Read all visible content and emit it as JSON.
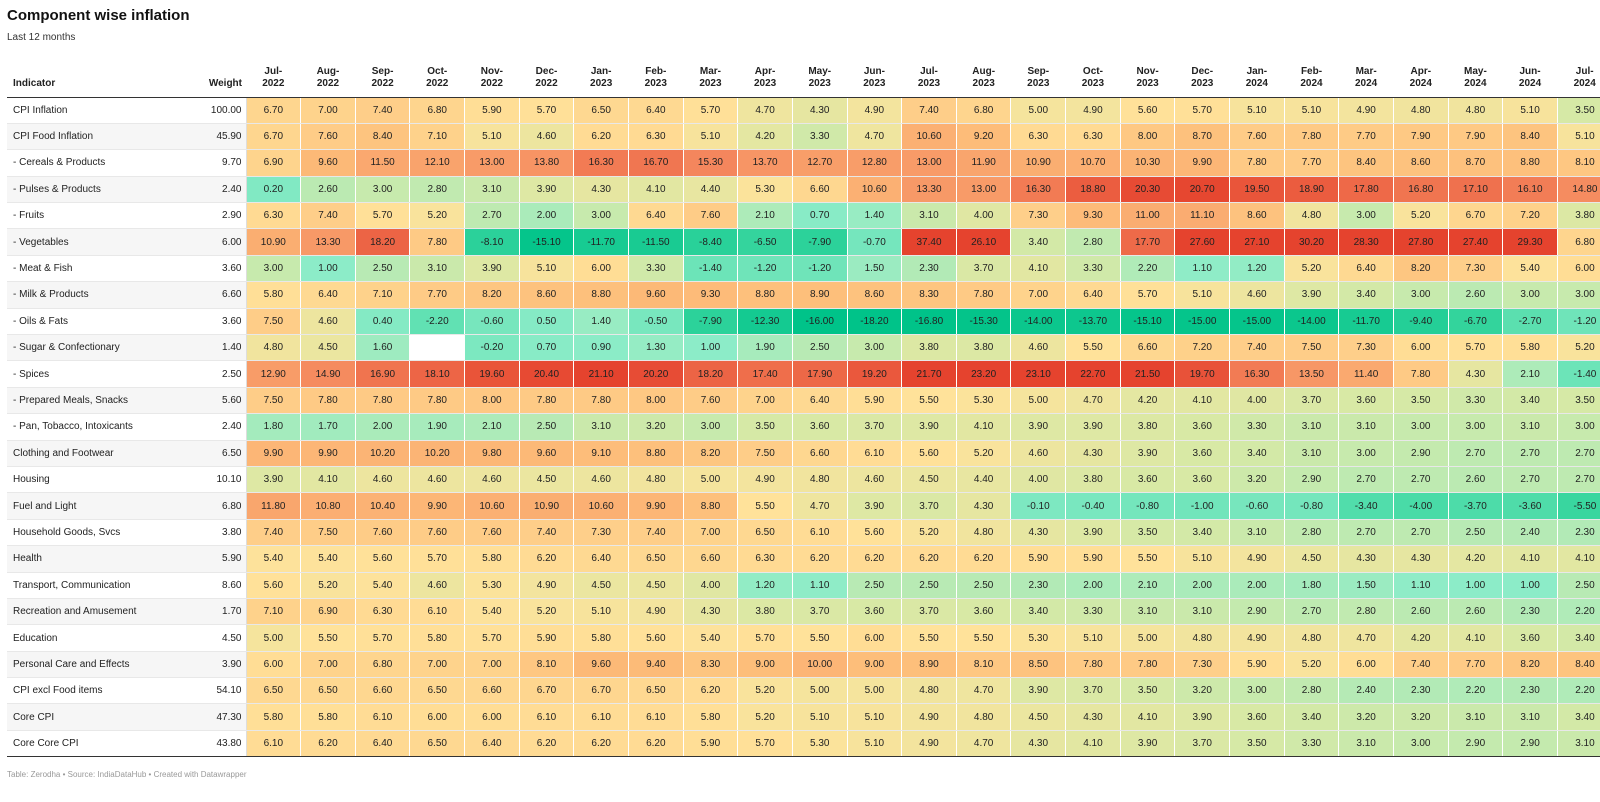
{
  "header": {
    "title": "Component wise inflation",
    "subtitle": "Last 12 months"
  },
  "footer": {
    "credit": "Table: Zerodha • Source: IndiaDataHub • Created with Datawrapper"
  },
  "colors": {
    "scale": [
      "#00c389",
      "#7ee8c3",
      "#d6e9a6",
      "#ffe29a",
      "#fdc07a",
      "#f58a5f",
      "#e5432e"
    ],
    "empty_cell": "#ffffff"
  },
  "chart_data": {
    "type": "table",
    "title": "Component wise inflation",
    "subtitle": "Last 12 months",
    "columns": {
      "indicator": "Indicator",
      "weight": "Weight",
      "months": [
        [
          "Jul-",
          "2022"
        ],
        [
          "Aug-",
          "2022"
        ],
        [
          "Sep-",
          "2022"
        ],
        [
          "Oct-",
          "2022"
        ],
        [
          "Nov-",
          "2022"
        ],
        [
          "Dec-",
          "2022"
        ],
        [
          "Jan-",
          "2023"
        ],
        [
          "Feb-",
          "2023"
        ],
        [
          "Mar-",
          "2023"
        ],
        [
          "Apr-",
          "2023"
        ],
        [
          "May-",
          "2023"
        ],
        [
          "Jun-",
          "2023"
        ],
        [
          "Jul-",
          "2023"
        ],
        [
          "Aug-",
          "2023"
        ],
        [
          "Sep-",
          "2023"
        ],
        [
          "Oct-",
          "2023"
        ],
        [
          "Nov-",
          "2023"
        ],
        [
          "Dec-",
          "2023"
        ],
        [
          "Jan-",
          "2024"
        ],
        [
          "Feb-",
          "2024"
        ],
        [
          "Mar-",
          "2024"
        ],
        [
          "Apr-",
          "2024"
        ],
        [
          "May-",
          "2024"
        ],
        [
          "Jun-",
          "2024"
        ],
        [
          "Jul-",
          "2024"
        ]
      ]
    },
    "rows": [
      {
        "indicator": "CPI Inflation",
        "weight": "100.00",
        "values": [
          "6.70",
          "7.00",
          "7.40",
          "6.80",
          "5.90",
          "5.70",
          "6.50",
          "6.40",
          "5.70",
          "4.70",
          "4.30",
          "4.90",
          "7.40",
          "6.80",
          "5.00",
          "4.90",
          "5.60",
          "5.70",
          "5.10",
          "5.10",
          "4.90",
          "4.80",
          "4.80",
          "5.10",
          "3.50"
        ]
      },
      {
        "indicator": "CPI Food Inflation",
        "weight": "45.90",
        "values": [
          "6.70",
          "7.60",
          "8.40",
          "7.10",
          "5.10",
          "4.60",
          "6.20",
          "6.30",
          "5.10",
          "4.20",
          "3.30",
          "4.70",
          "10.60",
          "9.20",
          "6.30",
          "6.30",
          "8.00",
          "8.70",
          "7.60",
          "7.80",
          "7.70",
          "7.90",
          "7.90",
          "8.40",
          "5.10"
        ]
      },
      {
        "indicator": "- Cereals & Products",
        "weight": "9.70",
        "values": [
          "6.90",
          "9.60",
          "11.50",
          "12.10",
          "13.00",
          "13.80",
          "16.30",
          "16.70",
          "15.30",
          "13.70",
          "12.70",
          "12.80",
          "13.00",
          "11.90",
          "10.90",
          "10.70",
          "10.30",
          "9.90",
          "7.80",
          "7.70",
          "8.40",
          "8.60",
          "8.70",
          "8.80",
          "8.10"
        ]
      },
      {
        "indicator": "- Pulses & Products",
        "weight": "2.40",
        "values": [
          "0.20",
          "2.60",
          "3.00",
          "2.80",
          "3.10",
          "3.90",
          "4.30",
          "4.10",
          "4.40",
          "5.30",
          "6.60",
          "10.60",
          "13.30",
          "13.00",
          "16.30",
          "18.80",
          "20.30",
          "20.70",
          "19.50",
          "18.90",
          "17.80",
          "16.80",
          "17.10",
          "16.10",
          "14.80"
        ]
      },
      {
        "indicator": "- Fruits",
        "weight": "2.90",
        "values": [
          "6.30",
          "7.40",
          "5.70",
          "5.20",
          "2.70",
          "2.00",
          "3.00",
          "6.40",
          "7.60",
          "2.10",
          "0.70",
          "1.40",
          "3.10",
          "4.00",
          "7.30",
          "9.30",
          "11.00",
          "11.10",
          "8.60",
          "4.80",
          "3.00",
          "5.20",
          "6.70",
          "7.20",
          "3.80"
        ]
      },
      {
        "indicator": "- Vegetables",
        "weight": "6.00",
        "values": [
          "10.90",
          "13.30",
          "18.20",
          "7.80",
          "-8.10",
          "-15.10",
          "-11.70",
          "-11.50",
          "-8.40",
          "-6.50",
          "-7.90",
          "-0.70",
          "37.40",
          "26.10",
          "3.40",
          "2.80",
          "17.70",
          "27.60",
          "27.10",
          "30.20",
          "28.30",
          "27.80",
          "27.40",
          "29.30",
          "6.80"
        ]
      },
      {
        "indicator": "- Meat & Fish",
        "weight": "3.60",
        "values": [
          "3.00",
          "1.00",
          "2.50",
          "3.10",
          "3.90",
          "5.10",
          "6.00",
          "3.30",
          "-1.40",
          "-1.20",
          "-1.20",
          "1.50",
          "2.30",
          "3.70",
          "4.10",
          "3.30",
          "2.20",
          "1.10",
          "1.20",
          "5.20",
          "6.40",
          "8.20",
          "7.30",
          "5.40",
          "6.00"
        ]
      },
      {
        "indicator": "- Milk & Products",
        "weight": "6.60",
        "values": [
          "5.80",
          "6.40",
          "7.10",
          "7.70",
          "8.20",
          "8.60",
          "8.80",
          "9.60",
          "9.30",
          "8.80",
          "8.90",
          "8.60",
          "8.30",
          "7.80",
          "7.00",
          "6.40",
          "5.70",
          "5.10",
          "4.60",
          "3.90",
          "3.40",
          "3.00",
          "2.60",
          "3.00",
          "3.00"
        ]
      },
      {
        "indicator": "- Oils & Fats",
        "weight": "3.60",
        "values": [
          "7.50",
          "4.60",
          "0.40",
          "-2.20",
          "-0.60",
          "0.50",
          "1.40",
          "-0.50",
          "-7.90",
          "-12.30",
          "-16.00",
          "-18.20",
          "-16.80",
          "-15.30",
          "-14.00",
          "-13.70",
          "-15.10",
          "-15.00",
          "-15.00",
          "-14.00",
          "-11.70",
          "-9.40",
          "-6.70",
          "-2.70",
          "-1.20"
        ]
      },
      {
        "indicator": "- Sugar & Confectionary",
        "weight": "1.40",
        "values": [
          "4.80",
          "4.50",
          "1.60",
          "",
          "-0.20",
          "0.70",
          "0.90",
          "1.30",
          "1.00",
          "1.90",
          "2.50",
          "3.00",
          "3.80",
          "3.80",
          "4.60",
          "5.50",
          "6.60",
          "7.20",
          "7.40",
          "7.50",
          "7.30",
          "6.00",
          "5.70",
          "5.80",
          "5.20"
        ]
      },
      {
        "indicator": "- Spices",
        "weight": "2.50",
        "values": [
          "12.90",
          "14.90",
          "16.90",
          "18.10",
          "19.60",
          "20.40",
          "21.10",
          "20.20",
          "18.20",
          "17.40",
          "17.90",
          "19.20",
          "21.70",
          "23.20",
          "23.10",
          "22.70",
          "21.50",
          "19.70",
          "16.30",
          "13.50",
          "11.40",
          "7.80",
          "4.30",
          "2.10",
          "-1.40"
        ]
      },
      {
        "indicator": "- Prepared Meals, Snacks",
        "weight": "5.60",
        "values": [
          "7.50",
          "7.80",
          "7.80",
          "7.80",
          "8.00",
          "7.80",
          "7.80",
          "8.00",
          "7.60",
          "7.00",
          "6.40",
          "5.90",
          "5.50",
          "5.30",
          "5.00",
          "4.70",
          "4.20",
          "4.10",
          "4.00",
          "3.70",
          "3.60",
          "3.50",
          "3.30",
          "3.40",
          "3.50"
        ]
      },
      {
        "indicator": "- Pan, Tobacco, Intoxicants",
        "weight": "2.40",
        "values": [
          "1.80",
          "1.70",
          "2.00",
          "1.90",
          "2.10",
          "2.50",
          "3.10",
          "3.20",
          "3.00",
          "3.50",
          "3.60",
          "3.70",
          "3.90",
          "4.10",
          "3.90",
          "3.90",
          "3.80",
          "3.60",
          "3.30",
          "3.10",
          "3.10",
          "3.00",
          "3.00",
          "3.10",
          "3.00"
        ]
      },
      {
        "indicator": "Clothing and Footwear",
        "weight": "6.50",
        "values": [
          "9.90",
          "9.90",
          "10.20",
          "10.20",
          "9.80",
          "9.60",
          "9.10",
          "8.80",
          "8.20",
          "7.50",
          "6.60",
          "6.10",
          "5.60",
          "5.20",
          "4.60",
          "4.30",
          "3.90",
          "3.60",
          "3.40",
          "3.10",
          "3.00",
          "2.90",
          "2.70",
          "2.70",
          "2.70"
        ]
      },
      {
        "indicator": "Housing",
        "weight": "10.10",
        "values": [
          "3.90",
          "4.10",
          "4.60",
          "4.60",
          "4.60",
          "4.50",
          "4.60",
          "4.80",
          "5.00",
          "4.90",
          "4.80",
          "4.60",
          "4.50",
          "4.40",
          "4.00",
          "3.80",
          "3.60",
          "3.60",
          "3.20",
          "2.90",
          "2.70",
          "2.70",
          "2.60",
          "2.70",
          "2.70"
        ]
      },
      {
        "indicator": "Fuel and Light",
        "weight": "6.80",
        "values": [
          "11.80",
          "10.80",
          "10.40",
          "9.90",
          "10.60",
          "10.90",
          "10.60",
          "9.90",
          "8.80",
          "5.50",
          "4.70",
          "3.90",
          "3.70",
          "4.30",
          "-0.10",
          "-0.40",
          "-0.80",
          "-1.00",
          "-0.60",
          "-0.80",
          "-3.40",
          "-4.00",
          "-3.70",
          "-3.60",
          "-5.50"
        ]
      },
      {
        "indicator": "Household Goods, Svcs",
        "weight": "3.80",
        "values": [
          "7.40",
          "7.50",
          "7.60",
          "7.60",
          "7.60",
          "7.40",
          "7.30",
          "7.40",
          "7.00",
          "6.50",
          "6.10",
          "5.60",
          "5.20",
          "4.80",
          "4.30",
          "3.90",
          "3.50",
          "3.40",
          "3.10",
          "2.80",
          "2.70",
          "2.70",
          "2.50",
          "2.40",
          "2.30"
        ]
      },
      {
        "indicator": "Health",
        "weight": "5.90",
        "values": [
          "5.40",
          "5.40",
          "5.60",
          "5.70",
          "5.80",
          "6.20",
          "6.40",
          "6.50",
          "6.60",
          "6.30",
          "6.20",
          "6.20",
          "6.20",
          "6.20",
          "5.90",
          "5.90",
          "5.50",
          "5.10",
          "4.90",
          "4.50",
          "4.30",
          "4.30",
          "4.20",
          "4.10",
          "4.10"
        ]
      },
      {
        "indicator": "Transport, Communication",
        "weight": "8.60",
        "values": [
          "5.60",
          "5.20",
          "5.40",
          "4.60",
          "5.30",
          "4.90",
          "4.50",
          "4.50",
          "4.00",
          "1.20",
          "1.10",
          "2.50",
          "2.50",
          "2.50",
          "2.30",
          "2.00",
          "2.10",
          "2.00",
          "2.00",
          "1.80",
          "1.50",
          "1.10",
          "1.00",
          "1.00",
          "2.50"
        ]
      },
      {
        "indicator": "Recreation and Amusement",
        "weight": "1.70",
        "values": [
          "7.10",
          "6.90",
          "6.30",
          "6.10",
          "5.40",
          "5.20",
          "5.10",
          "4.90",
          "4.30",
          "3.80",
          "3.70",
          "3.60",
          "3.70",
          "3.60",
          "3.40",
          "3.30",
          "3.10",
          "3.10",
          "2.90",
          "2.70",
          "2.80",
          "2.60",
          "2.60",
          "2.30",
          "2.20"
        ]
      },
      {
        "indicator": "Education",
        "weight": "4.50",
        "values": [
          "5.00",
          "5.50",
          "5.70",
          "5.80",
          "5.70",
          "5.90",
          "5.80",
          "5.60",
          "5.40",
          "5.70",
          "5.50",
          "6.00",
          "5.50",
          "5.50",
          "5.30",
          "5.10",
          "5.00",
          "4.80",
          "4.90",
          "4.80",
          "4.70",
          "4.20",
          "4.10",
          "3.60",
          "3.40"
        ]
      },
      {
        "indicator": "Personal Care and Effects",
        "weight": "3.90",
        "values": [
          "6.00",
          "7.00",
          "6.80",
          "7.00",
          "7.00",
          "8.10",
          "9.60",
          "9.40",
          "8.30",
          "9.00",
          "10.00",
          "9.00",
          "8.90",
          "8.10",
          "8.50",
          "7.80",
          "7.80",
          "7.30",
          "5.90",
          "5.20",
          "6.00",
          "7.40",
          "7.70",
          "8.20",
          "8.40"
        ]
      },
      {
        "indicator": "CPI excl Food items",
        "weight": "54.10",
        "values": [
          "6.50",
          "6.50",
          "6.60",
          "6.50",
          "6.60",
          "6.70",
          "6.70",
          "6.50",
          "6.20",
          "5.20",
          "5.00",
          "5.00",
          "4.80",
          "4.70",
          "3.90",
          "3.70",
          "3.50",
          "3.20",
          "3.00",
          "2.80",
          "2.40",
          "2.30",
          "2.20",
          "2.30",
          "2.20"
        ]
      },
      {
        "indicator": "Core CPI",
        "weight": "47.30",
        "values": [
          "5.80",
          "5.80",
          "6.10",
          "6.00",
          "6.00",
          "6.10",
          "6.10",
          "6.10",
          "5.80",
          "5.20",
          "5.10",
          "5.10",
          "4.90",
          "4.80",
          "4.50",
          "4.30",
          "4.10",
          "3.90",
          "3.60",
          "3.40",
          "3.20",
          "3.20",
          "3.10",
          "3.10",
          "3.40"
        ]
      },
      {
        "indicator": "Core Core CPI",
        "weight": "43.80",
        "values": [
          "6.10",
          "6.20",
          "6.40",
          "6.50",
          "6.40",
          "6.20",
          "6.20",
          "6.20",
          "5.90",
          "5.70",
          "5.30",
          "5.10",
          "4.90",
          "4.70",
          "4.30",
          "4.10",
          "3.90",
          "3.70",
          "3.50",
          "3.30",
          "3.10",
          "3.00",
          "2.90",
          "2.90",
          "3.10"
        ]
      }
    ]
  }
}
